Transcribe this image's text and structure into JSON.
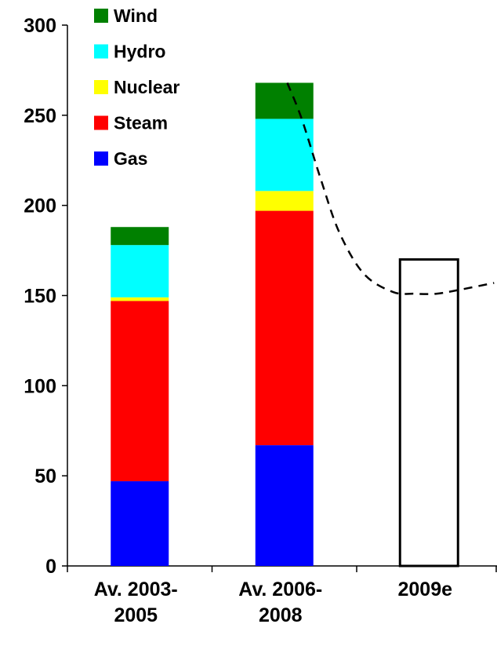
{
  "chart_data": {
    "type": "bar",
    "stacked": true,
    "categories": [
      [
        "Av. 2003-",
        "2005"
      ],
      [
        "Av. 2006-",
        "2008"
      ],
      [
        "2009e"
      ]
    ],
    "series": [
      {
        "name": "Gas",
        "color": "#0000ff",
        "values": [
          47,
          67,
          null
        ]
      },
      {
        "name": "Steam",
        "color": "#ff0000",
        "values": [
          100,
          130,
          null
        ]
      },
      {
        "name": "Nuclear",
        "color": "#ffff00",
        "values": [
          2,
          11,
          null
        ]
      },
      {
        "name": "Hydro",
        "color": "#00ffff",
        "values": [
          29,
          40,
          null
        ]
      },
      {
        "name": "Wind",
        "color": "#008000",
        "values": [
          10,
          20,
          null
        ]
      }
    ],
    "outline_bar": {
      "category_index": 2,
      "value": 170,
      "fill": "none",
      "stroke": "#000000"
    },
    "dashed_curve": {
      "points": [
        {
          "x": 1.02,
          "y": 268
        },
        {
          "x": 1.12,
          "y": 248
        },
        {
          "x": 1.25,
          "y": 215
        },
        {
          "x": 1.38,
          "y": 185
        },
        {
          "x": 1.55,
          "y": 162
        },
        {
          "x": 1.75,
          "y": 152
        },
        {
          "x": 1.9,
          "y": 151
        },
        {
          "x": 2.05,
          "y": 151
        },
        {
          "x": 2.2,
          "y": 153
        },
        {
          "x": 2.45,
          "y": 157
        }
      ],
      "style": "dashed",
      "color": "#000000"
    },
    "ylim": [
      0,
      300
    ],
    "yticks": [
      0,
      50,
      100,
      150,
      200,
      250,
      300
    ],
    "legend_order": [
      "Wind",
      "Hydro",
      "Nuclear",
      "Steam",
      "Gas"
    ],
    "legend_placement": "top-left",
    "grid": false,
    "title": "",
    "xlabel": "",
    "ylabel": ""
  }
}
